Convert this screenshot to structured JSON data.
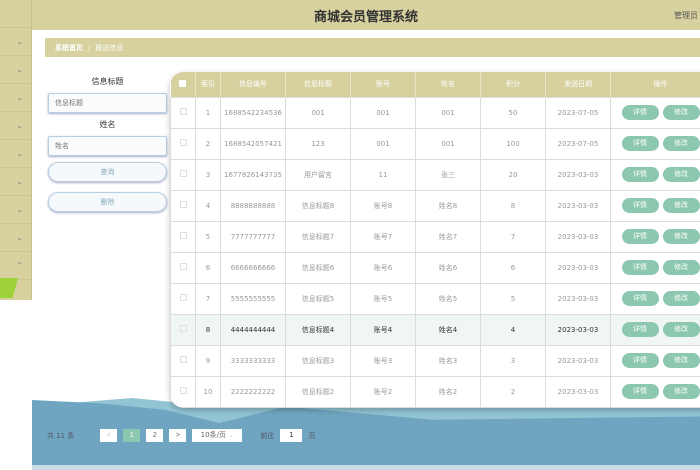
{
  "header": {
    "title": "商城会员管理系统",
    "user": "管理员"
  },
  "breadcrumb": {
    "home": "系统首页",
    "sep": "/",
    "current": "推送信息"
  },
  "search": {
    "title_label": "信息标题",
    "title_placeholder": "信息标题",
    "name_label": "姓名",
    "name_placeholder": "姓名",
    "query_button": "查询",
    "delete_button": "删除"
  },
  "table": {
    "columns": [
      "索引",
      "信息编号",
      "信息标题",
      "账号",
      "姓名",
      "积分",
      "发送日期",
      "操作"
    ],
    "detail_label": "详情",
    "edit_label": "修改",
    "rows": [
      {
        "idx": "1",
        "code": "1688542234536",
        "title": "001",
        "account": "001",
        "name": "001",
        "points": "50",
        "date": "2023-07-05"
      },
      {
        "idx": "2",
        "code": "1688542057421",
        "title": "123",
        "account": "001",
        "name": "001",
        "points": "100",
        "date": "2023-07-05"
      },
      {
        "idx": "3",
        "code": "1677826143735",
        "title": "用户留言",
        "account": "11",
        "name": "张三",
        "points": "20",
        "date": "2023-03-03"
      },
      {
        "idx": "4",
        "code": "8888888888",
        "title": "信息标题8",
        "account": "账号8",
        "name": "姓名8",
        "points": "8",
        "date": "2023-03-03"
      },
      {
        "idx": "5",
        "code": "7777777777",
        "title": "信息标题7",
        "account": "账号7",
        "name": "姓名7",
        "points": "7",
        "date": "2023-03-03"
      },
      {
        "idx": "6",
        "code": "6666666666",
        "title": "信息标题6",
        "account": "账号6",
        "name": "姓名6",
        "points": "6",
        "date": "2023-03-03"
      },
      {
        "idx": "7",
        "code": "5555555555",
        "title": "信息标题5",
        "account": "账号5",
        "name": "姓名5",
        "points": "5",
        "date": "2023-03-03"
      },
      {
        "idx": "8",
        "code": "4444444444",
        "title": "信息标题4",
        "account": "账号4",
        "name": "姓名4",
        "points": "4",
        "date": "2023-03-03"
      },
      {
        "idx": "9",
        "code": "3333333333",
        "title": "信息标题3",
        "account": "账号3",
        "name": "姓名3",
        "points": "3",
        "date": "2023-03-03"
      },
      {
        "idx": "10",
        "code": "2222222222",
        "title": "信息标题2",
        "account": "账号2",
        "name": "姓名2",
        "points": "2",
        "date": "2023-03-03"
      }
    ]
  },
  "pagination": {
    "total": "共 11 条",
    "prev": "<",
    "pages": [
      "1",
      "2"
    ],
    "current_page": "1",
    "next": ">",
    "page_size": "10条/页",
    "goto_prefix": "前往",
    "goto_value": "1",
    "goto_suffix": "页"
  },
  "colors": {
    "theme": "#d6d19e",
    "button": "#8cc7b0",
    "wave": "#6fa5c0"
  }
}
